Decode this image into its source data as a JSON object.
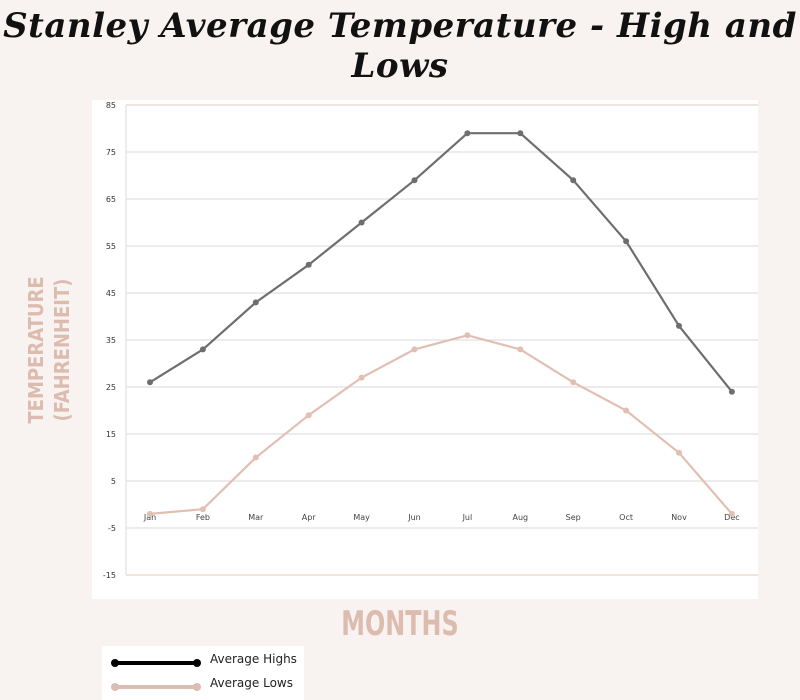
{
  "chart_data": {
    "type": "line",
    "title": "Stanley Average Temperature - High and Lows",
    "xlabel": "MONTHS",
    "ylabel_line1": "TEMPERATURE",
    "ylabel_line2": "(FAHRENHEIT)",
    "categories": [
      "Jan",
      "Feb",
      "Mar",
      "Apr",
      "May",
      "Jun",
      "Jul",
      "Aug",
      "Sep",
      "Oct",
      "Nov",
      "Dec"
    ],
    "yticks": [
      85,
      75,
      65,
      55,
      45,
      35,
      25,
      15,
      5,
      -5,
      -15
    ],
    "ylim": [
      -15,
      85
    ],
    "grid": true,
    "legend_position": "bottom-left",
    "series": [
      {
        "name": "Average Highs",
        "color": "#6e6e6e",
        "legend_color": "#000000",
        "values": [
          26,
          33,
          43,
          51,
          60,
          69,
          79,
          79,
          69,
          56,
          38,
          24
        ]
      },
      {
        "name": "Average Lows",
        "color": "#e2bfb3",
        "legend_color": "#dcbcb3",
        "values": [
          -2,
          -1,
          10,
          19,
          27,
          33,
          36,
          33,
          26,
          20,
          11,
          -2
        ]
      }
    ]
  }
}
